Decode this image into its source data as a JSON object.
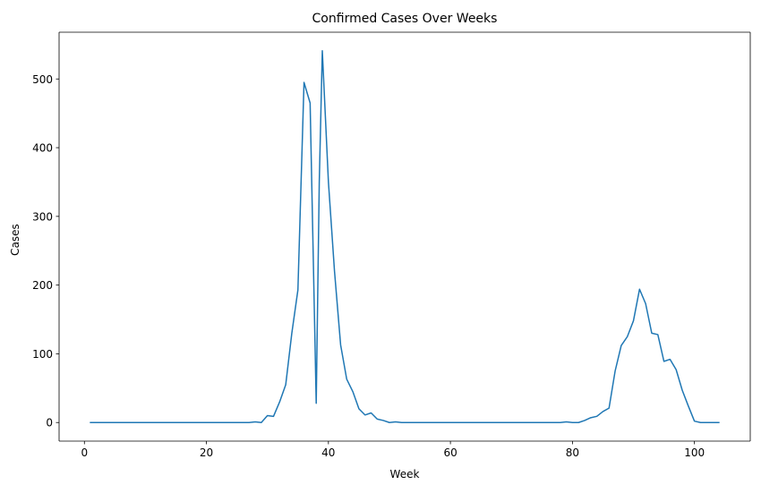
{
  "chart_data": {
    "type": "line",
    "title": "Confirmed Cases Over Weeks",
    "xlabel": "Week",
    "ylabel": "Cases",
    "xlim": [
      -4.15,
      109.15
    ],
    "ylim": [
      -27.05,
      568.05
    ],
    "xticks": [
      0,
      20,
      40,
      60,
      80,
      100
    ],
    "yticks": [
      0,
      100,
      200,
      300,
      400,
      500
    ],
    "grid": false,
    "legend": "none",
    "series": [
      {
        "color": "#1f77b4",
        "x": [
          1,
          2,
          3,
          4,
          5,
          6,
          7,
          8,
          9,
          10,
          11,
          12,
          13,
          14,
          15,
          16,
          17,
          18,
          19,
          20,
          21,
          22,
          23,
          24,
          25,
          26,
          27,
          28,
          29,
          30,
          31,
          32,
          33,
          34,
          35,
          36,
          37,
          38,
          38.5,
          39,
          40,
          41,
          42,
          43,
          44,
          45,
          46,
          47,
          48,
          49,
          50,
          51,
          52,
          53,
          54,
          55,
          56,
          57,
          58,
          59,
          60,
          61,
          62,
          63,
          64,
          65,
          66,
          67,
          68,
          69,
          70,
          71,
          72,
          73,
          74,
          75,
          76,
          77,
          78,
          79,
          80,
          81,
          82,
          83,
          84,
          85,
          86,
          87,
          88,
          89,
          90,
          91,
          92,
          93,
          94,
          95,
          96,
          97,
          98,
          99,
          100,
          101,
          102,
          103,
          104
        ],
        "values": [
          0,
          0,
          0,
          0,
          0,
          0,
          0,
          0,
          0,
          0,
          0,
          0,
          0,
          0,
          0,
          0,
          0,
          0,
          0,
          0,
          0,
          0,
          0,
          0,
          0,
          0,
          0,
          1,
          0,
          10,
          9,
          30,
          55,
          130,
          193,
          495,
          465,
          28,
          350,
          541,
          350,
          220,
          113,
          63,
          45,
          20,
          11,
          14,
          5,
          3,
          0,
          1,
          0,
          0,
          0,
          0,
          0,
          0,
          0,
          0,
          0,
          0,
          0,
          0,
          0,
          0,
          0,
          0,
          0,
          0,
          0,
          0,
          0,
          0,
          0,
          0,
          0,
          0,
          0,
          1,
          0,
          0,
          3,
          7,
          9,
          16,
          21,
          75,
          112,
          125,
          148,
          194,
          173,
          130,
          128,
          89,
          92,
          77,
          47,
          24,
          2,
          0,
          0,
          0,
          0
        ]
      }
    ]
  }
}
